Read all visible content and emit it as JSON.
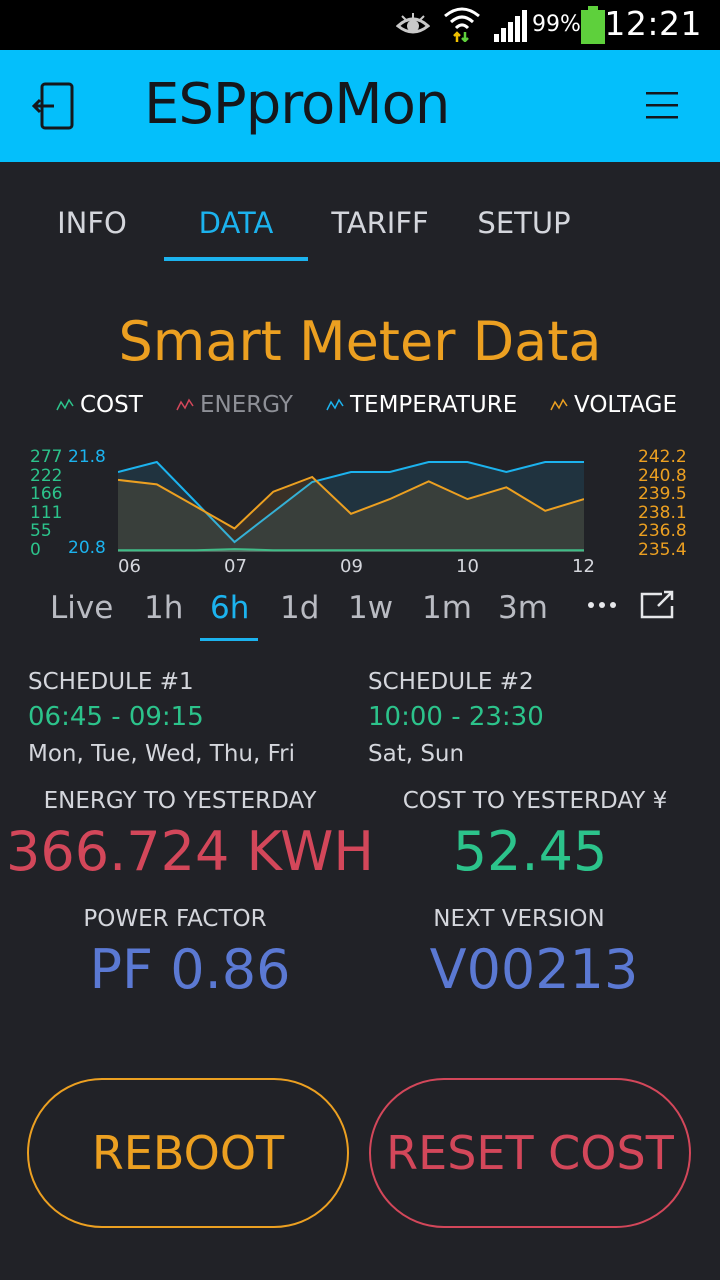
{
  "status_bar": {
    "time": "12:21",
    "battery": "99%"
  },
  "app": {
    "title": "ESPproMon"
  },
  "tabs": [
    {
      "label": "INFO"
    },
    {
      "label": "DATA"
    },
    {
      "label": "TARIFF"
    },
    {
      "label": "SETUP"
    }
  ],
  "chart": {
    "heading": "Smart Meter Data",
    "legend": [
      "COST",
      "ENERGY",
      "TEMPERATURE",
      "VOLTAGE"
    ],
    "left_ticks_a": [
      "277",
      "222",
      "166",
      "111",
      "55",
      "0"
    ],
    "left_ticks_b_top": "21.8",
    "left_ticks_b_bottom": "20.8",
    "right_ticks": [
      "242.2",
      "240.8",
      "239.5",
      "238.1",
      "236.8",
      "235.4"
    ],
    "x_ticks": [
      "06",
      "07",
      "09",
      "10",
      "12"
    ],
    "colors": {
      "cost": "#2cc38b",
      "energy": "#d3475a",
      "temperature": "#1cb3ee",
      "voltage": "#eca021"
    }
  },
  "chart_data": {
    "type": "line",
    "x": [
      "06:00",
      "06:30",
      "07:00",
      "07:30",
      "08:00",
      "08:30",
      "09:00",
      "09:30",
      "10:00",
      "10:30",
      "11:00",
      "11:30",
      "12:00"
    ],
    "series": [
      {
        "name": "COST",
        "values": [
          5,
          5,
          5,
          8,
          5,
          5,
          5,
          5,
          5,
          5,
          5,
          5,
          5
        ]
      },
      {
        "name": "TEMPERATURE",
        "values": [
          21.6,
          21.7,
          21.3,
          20.9,
          21.2,
          21.5,
          21.6,
          21.6,
          21.7,
          21.7,
          21.6,
          21.7,
          21.7
        ]
      },
      {
        "name": "VOLTAGE",
        "values": [
          240.3,
          240.0,
          238.5,
          237.0,
          239.5,
          240.5,
          238.0,
          239.0,
          240.2,
          239.0,
          239.8,
          238.2,
          239.0
        ]
      }
    ],
    "x_ticks": [
      "06",
      "07",
      "09",
      "10",
      "12"
    ]
  },
  "ranges": [
    "Live",
    "1h",
    "6h",
    "1d",
    "1w",
    "1m",
    "3m"
  ],
  "schedules": [
    {
      "label": "SCHEDULE #1",
      "time": "06:45 - 09:15",
      "days": "Mon, Tue, Wed, Thu, Fri"
    },
    {
      "label": "SCHEDULE #2",
      "time": "10:00 - 23:30",
      "days": "Sat, Sun"
    }
  ],
  "stats": {
    "energy": {
      "label": "ENERGY TO YESTERDAY",
      "value": "366.724 KWH"
    },
    "cost": {
      "label": "COST TO YESTERDAY ¥",
      "value": "52.45"
    },
    "pf": {
      "label": "POWER FACTOR",
      "value": "PF 0.86"
    },
    "version": {
      "label": "NEXT VERSION",
      "value": "V00213"
    }
  },
  "buttons": {
    "reboot": "REBOOT",
    "reset_cost": "RESET COST"
  }
}
